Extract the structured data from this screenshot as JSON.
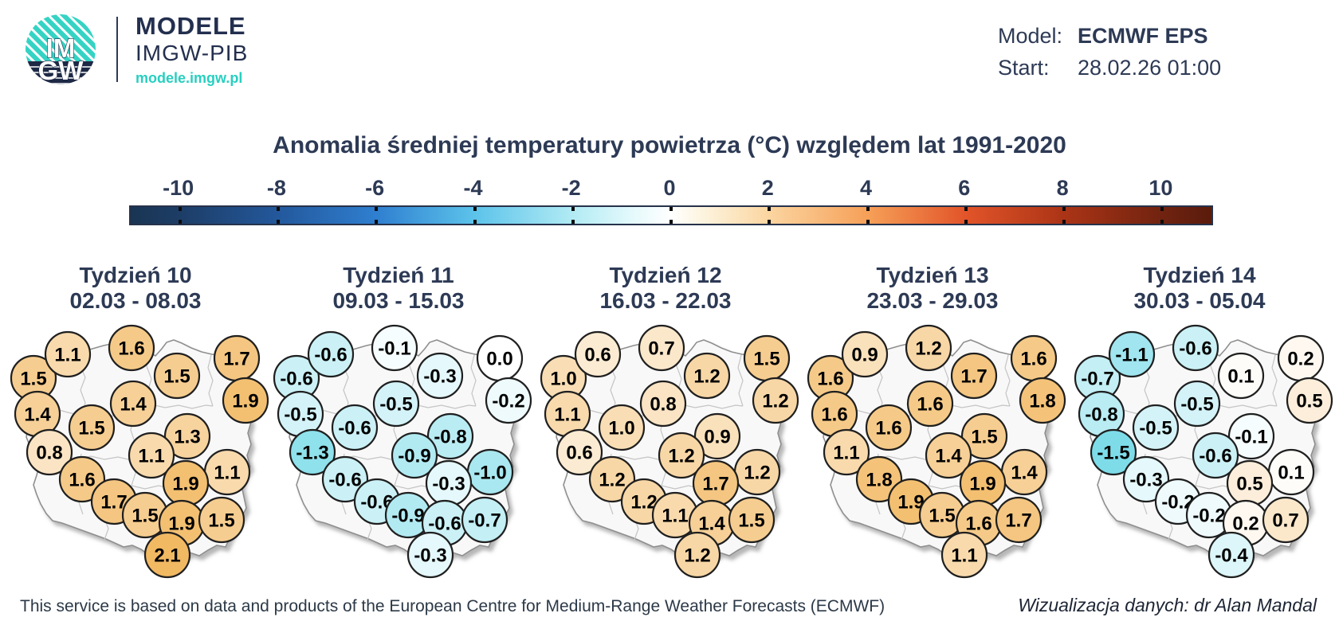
{
  "header": {
    "logo": {
      "monogram_top": "IM",
      "monogram_bottom": "GW",
      "title": "MODELE",
      "subtitle": "IMGW-PIB",
      "url": "modele.imgw.pl",
      "teal": "#35d3c4",
      "navy": "#1d2945"
    },
    "model": {
      "label": "Model:",
      "value": "ECMWF EPS"
    },
    "start": {
      "label": "Start:",
      "value": "28.02.26 01:00"
    }
  },
  "legend": {
    "title": "Anomalia średniej temperatury powietrza (°C) względem lat 1991-2020",
    "tick_values": [
      -10,
      -8,
      -6,
      -4,
      -2,
      0,
      2,
      4,
      6,
      8,
      10
    ],
    "domain": [
      -11,
      11
    ],
    "gradient_stops": [
      {
        "v": -11,
        "c": "#1a3553"
      },
      {
        "v": -10,
        "c": "#1d3d66"
      },
      {
        "v": -8,
        "c": "#23589c"
      },
      {
        "v": -6,
        "c": "#2f7fd0"
      },
      {
        "v": -4,
        "c": "#5cc3ea"
      },
      {
        "v": -2,
        "c": "#b2ebf4"
      },
      {
        "v": -0.7,
        "c": "#e8fafc"
      },
      {
        "v": 0,
        "c": "#ffffff"
      },
      {
        "v": 0.7,
        "c": "#fdf3dc"
      },
      {
        "v": 2,
        "c": "#fbd5a0"
      },
      {
        "v": 4,
        "c": "#f6a058"
      },
      {
        "v": 6,
        "c": "#e25429"
      },
      {
        "v": 8,
        "c": "#ab3416"
      },
      {
        "v": 10,
        "c": "#702310"
      },
      {
        "v": 11,
        "c": "#5a1b0c"
      }
    ]
  },
  "chart_data": {
    "type": "bubble-map",
    "title": "Anomalia średniej temperatury powietrza (°C) względem lat 1991-2020",
    "unit": "°C",
    "model": "ECMWF EPS",
    "run_start": "28.02.26 01:00",
    "legend_range": [
      -10,
      10
    ],
    "bubble_color_scale": {
      "zero": "#ffffff",
      "positive": {
        "max_value": 2.1,
        "color": "#f2b963"
      },
      "negative": {
        "max_value": -1.5,
        "color": "#7edce9"
      }
    },
    "region_positions": [
      [
        42,
        75
      ],
      [
        85,
        45
      ],
      [
        165,
        37
      ],
      [
        222,
        72
      ],
      [
        297,
        50
      ],
      [
        308,
        103
      ],
      [
        167,
        107
      ],
      [
        47,
        120
      ],
      [
        115,
        137
      ],
      [
        235,
        148
      ],
      [
        62,
        168
      ],
      [
        190,
        172
      ],
      [
        285,
        193
      ],
      [
        103,
        202
      ],
      [
        233,
        207
      ],
      [
        143,
        230
      ],
      [
        182,
        247
      ],
      [
        228,
        257
      ],
      [
        278,
        253
      ],
      [
        210,
        297
      ]
    ],
    "weeks": [
      {
        "label": "Tydzień 10",
        "dates": "02.03 - 08.03",
        "values": [
          "1.5",
          "1.1",
          "1.6",
          "1.5",
          "1.7",
          "1.9",
          "1.4",
          "1.4",
          "1.5",
          "1.3",
          "0.8",
          "1.1",
          "1.1",
          "1.6",
          "1.9",
          "1.7",
          "1.5",
          "1.9",
          "1.5",
          "2.1"
        ]
      },
      {
        "label": "Tydzień 11",
        "dates": "09.03 - 15.03",
        "values": [
          "-0.6",
          "-0.6",
          "-0.1",
          "-0.3",
          "0.0",
          "-0.2",
          "-0.5",
          "-0.5",
          "-0.6",
          "-0.8",
          "-1.3",
          "-0.9",
          "-1.0",
          "-0.6",
          "-0.3",
          "-0.6",
          "-0.9",
          "-0.6",
          "-0.7",
          "-0.3"
        ]
      },
      {
        "label": "Tydzień 12",
        "dates": "16.03 - 22.03",
        "values": [
          "1.0",
          "0.6",
          "0.7",
          "1.2",
          "1.5",
          "1.2",
          "0.8",
          "1.1",
          "1.0",
          "0.9",
          "0.6",
          "1.2",
          "1.2",
          "1.2",
          "1.7",
          "1.2",
          "1.1",
          "1.4",
          "1.5",
          "1.2"
        ]
      },
      {
        "label": "Tydzień 13",
        "dates": "23.03 - 29.03",
        "values": [
          "1.6",
          "0.9",
          "1.2",
          "1.7",
          "1.6",
          "1.8",
          "1.6",
          "1.6",
          "1.6",
          "1.5",
          "1.1",
          "1.4",
          "1.4",
          "1.8",
          "1.9",
          "1.9",
          "1.5",
          "1.6",
          "1.7",
          "1.1"
        ]
      },
      {
        "label": "Tydzień 14",
        "dates": "30.03 - 05.04",
        "values": [
          "-0.7",
          "-1.1",
          "-0.6",
          "0.1",
          "0.2",
          "0.5",
          "-0.5",
          "-0.8",
          "-0.5",
          "-0.1",
          "-1.5",
          "-0.6",
          "0.1",
          "-0.3",
          "0.5",
          "-0.2",
          "-0.2",
          "0.2",
          "0.7",
          "-0.4"
        ]
      }
    ]
  },
  "footer": {
    "left": "This service is based on data and products of the European Centre for Medium-Range Weather Forecasts (ECMWF)",
    "right": "Wizualizacja danych: dr Alan Mandal"
  }
}
